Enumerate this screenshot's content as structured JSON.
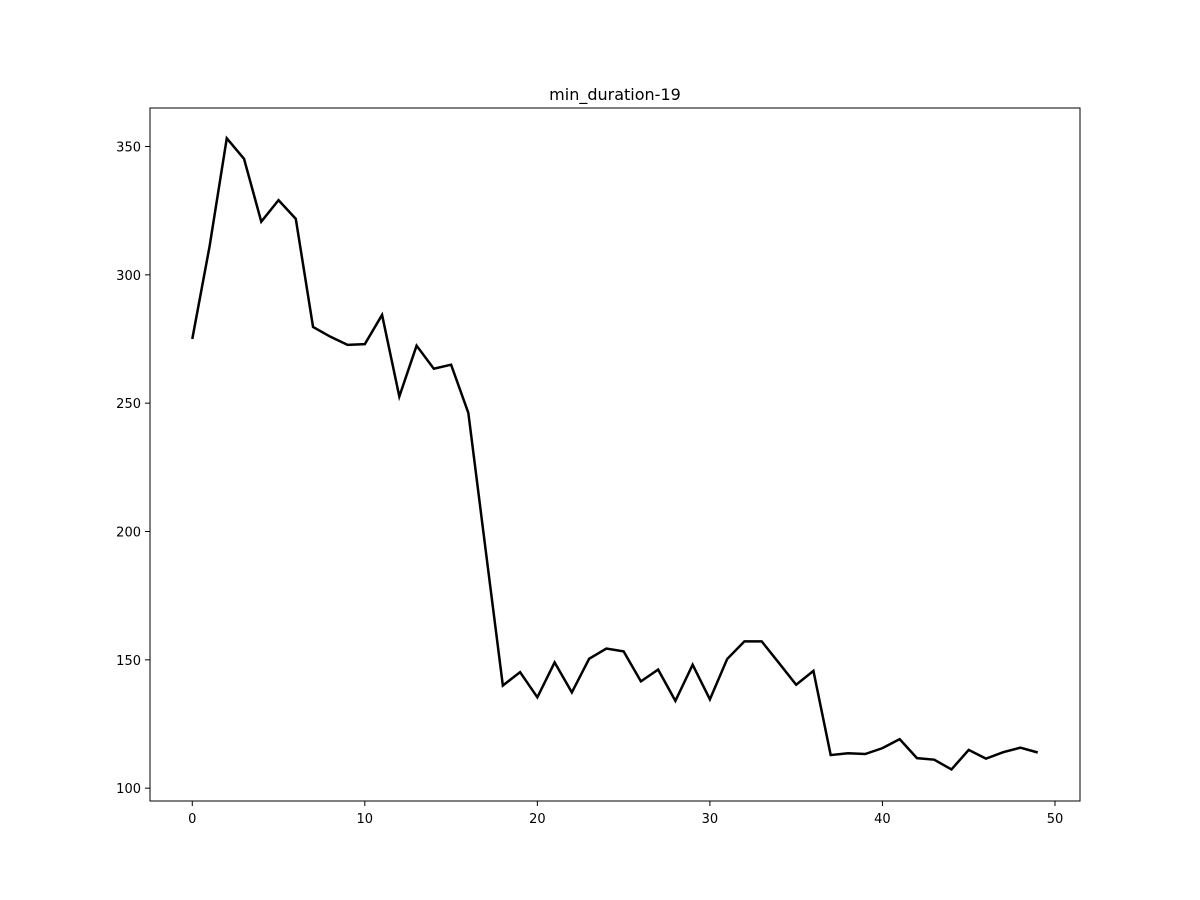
{
  "chart_data": {
    "type": "line",
    "title": "min_duration-19",
    "xlabel": "",
    "ylabel": "",
    "xlim": [
      -2.45,
      51.45
    ],
    "ylim": [
      95.0,
      365.0
    ],
    "xticks": [
      0,
      10,
      20,
      30,
      40,
      50
    ],
    "yticks": [
      100,
      150,
      200,
      250,
      300,
      350
    ],
    "grid": false,
    "line_color": "#000000",
    "series": [
      {
        "x": [
          0,
          1,
          2,
          3,
          4,
          5,
          6,
          7,
          8,
          9,
          10,
          11,
          12,
          13,
          14,
          15,
          16,
          17,
          18,
          19,
          20,
          21,
          22,
          23,
          24,
          25,
          26,
          27,
          28,
          29,
          30,
          31,
          32,
          33,
          34,
          35,
          36,
          37,
          38,
          39,
          40,
          41,
          42,
          43,
          44,
          45,
          46,
          47,
          48,
          49
        ],
        "values": [
          275.0,
          311.0,
          353.2,
          345.2,
          320.7,
          329.1,
          321.8,
          279.7,
          275.9,
          272.7,
          273.0,
          284.4,
          252.6,
          272.4,
          263.4,
          265.0,
          246.2,
          193.0,
          140.0,
          145.2,
          135.4,
          149.0,
          137.3,
          150.4,
          154.4,
          153.3,
          141.6,
          146.2,
          134.0,
          148.1,
          134.6,
          150.3,
          157.2,
          157.2,
          148.8,
          140.3,
          145.7,
          112.9,
          113.6,
          113.3,
          115.6,
          119.1,
          111.7,
          111.1,
          107.3,
          114.9,
          111.5,
          114.0,
          115.8,
          113.9
        ]
      }
    ]
  }
}
